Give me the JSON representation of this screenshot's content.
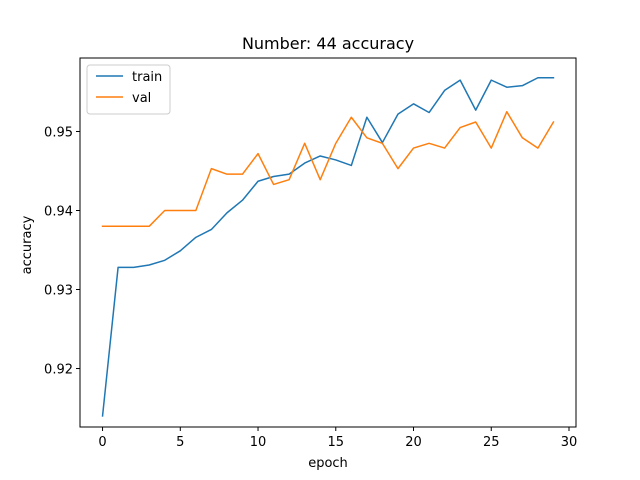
{
  "chart_data": {
    "type": "line",
    "title": "Number: 44 accuracy",
    "xlabel": "epoch",
    "ylabel": "accuracy",
    "xlim": [
      -1.45,
      30.45
    ],
    "ylim": [
      0.9126,
      0.9593
    ],
    "xticks": [
      0,
      5,
      10,
      15,
      20,
      25,
      30
    ],
    "yticks": [
      0.92,
      0.93,
      0.94,
      0.95
    ],
    "ytick_labels": [
      "0.92",
      "0.93",
      "0.94",
      "0.95"
    ],
    "grid": false,
    "legend_position": "top-left",
    "x": [
      0,
      1,
      2,
      3,
      4,
      5,
      6,
      7,
      8,
      9,
      10,
      11,
      12,
      13,
      14,
      15,
      16,
      17,
      18,
      19,
      20,
      21,
      22,
      23,
      24,
      25,
      26,
      27,
      28,
      29
    ],
    "series": [
      {
        "name": "train",
        "color": "#1f77b4",
        "values": [
          0.914,
          0.9328,
          0.9328,
          0.9331,
          0.9337,
          0.9349,
          0.9366,
          0.9376,
          0.9397,
          0.9413,
          0.9437,
          0.9443,
          0.9446,
          0.946,
          0.9469,
          0.9464,
          0.9457,
          0.9518,
          0.9486,
          0.9522,
          0.9535,
          0.9524,
          0.9552,
          0.9565,
          0.9527,
          0.9565,
          0.9556,
          0.9558,
          0.9568,
          0.9568
        ]
      },
      {
        "name": "val",
        "color": "#ff7f0e",
        "values": [
          0.938,
          0.938,
          0.938,
          0.938,
          0.94,
          0.94,
          0.94,
          0.9453,
          0.9446,
          0.9446,
          0.9472,
          0.9433,
          0.9439,
          0.9485,
          0.9439,
          0.9485,
          0.9518,
          0.9492,
          0.9485,
          0.9453,
          0.9479,
          0.9485,
          0.9479,
          0.9505,
          0.9512,
          0.9479,
          0.9525,
          0.9492,
          0.9479,
          0.9512
        ]
      }
    ]
  }
}
